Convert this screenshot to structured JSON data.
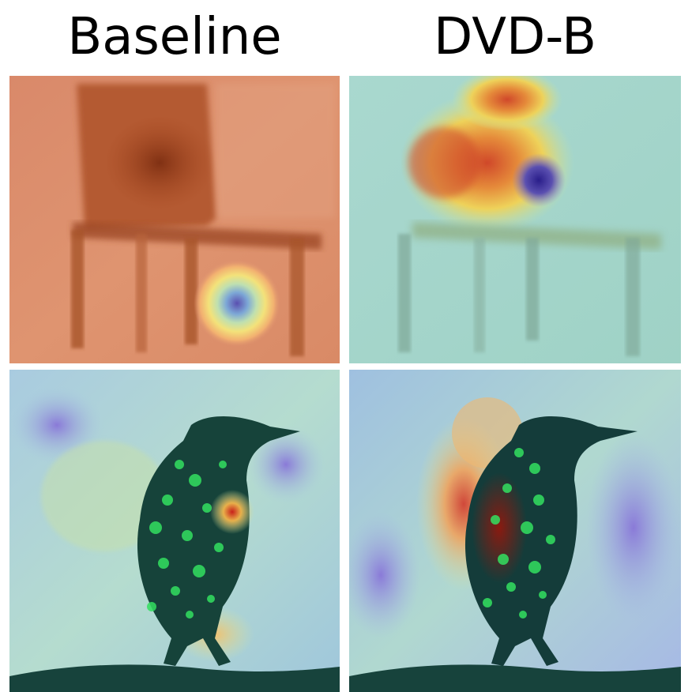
{
  "columns": {
    "left_title": "Baseline",
    "right_title": "DVD-B"
  },
  "colors": {
    "background": "#ffffff",
    "title_text": "#000000",
    "heat_red": "#c24a2a",
    "heat_orange": "#d97a4a",
    "heat_yellow": "#e8d85a",
    "heat_cyan": "#8fd6c8",
    "heat_blue": "#5a4fb0",
    "bird_green": "#2fd65a",
    "bird_dark": "#0f3a30"
  }
}
